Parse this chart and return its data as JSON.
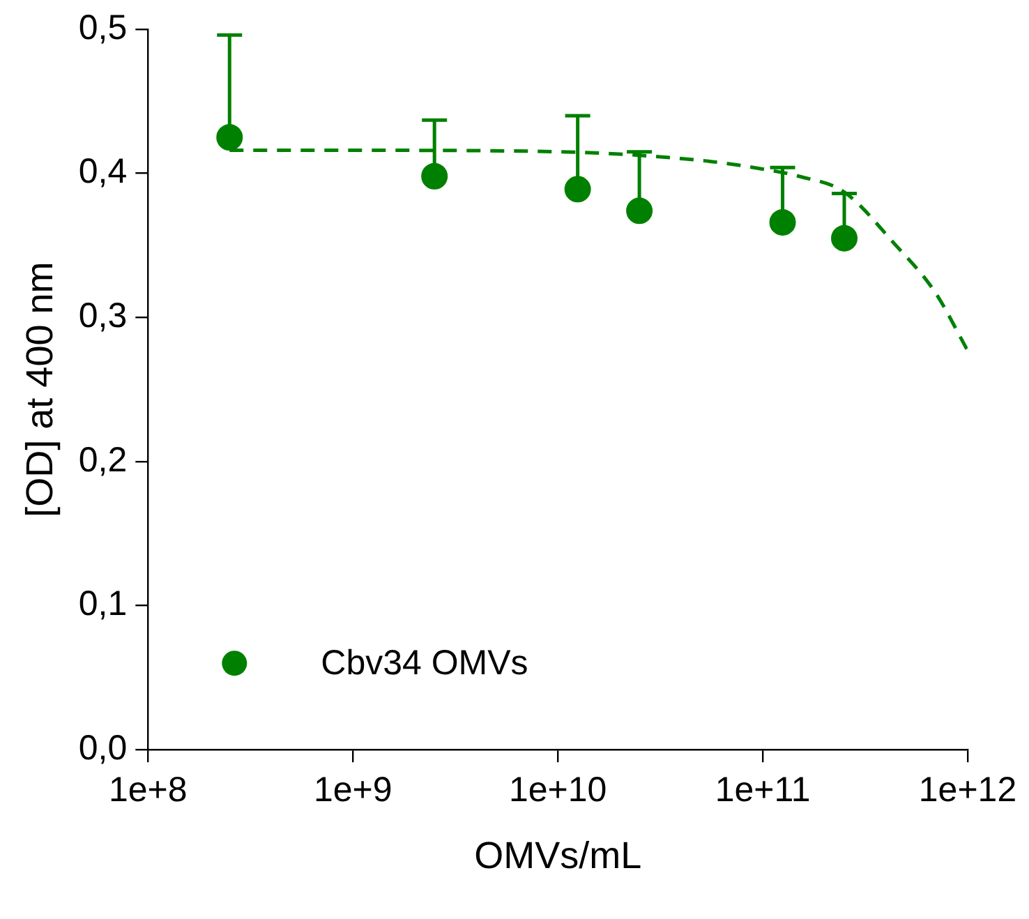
{
  "chart_data": {
    "type": "scatter",
    "xlabel": "OMVs/mL",
    "ylabel": "[OD] at 400 nm",
    "log": "x",
    "grid": false,
    "legend": "bottom left",
    "marker": "circle",
    "xlim": [
      100000000,
      1000000000000
    ],
    "xticks": [
      {
        "value": 100000000,
        "label": "1e+8"
      },
      {
        "value": 1000000000,
        "label": "1e+9"
      },
      {
        "value": 10000000000,
        "label": "1e+10"
      },
      {
        "value": 100000000000,
        "label": "1e+11"
      },
      {
        "value": 1000000000000,
        "label": "1e+12"
      }
    ],
    "ylim": [
      0,
      0.5
    ],
    "yticks": [
      {
        "value": 0,
        "label": "0,0"
      },
      {
        "value": 0.1,
        "label": "0,1"
      },
      {
        "value": 0.2,
        "label": "0,2"
      },
      {
        "value": 0.3,
        "label": "0,3"
      },
      {
        "value": 0.4,
        "label": "0,4"
      },
      {
        "value": 0.5,
        "label": "0,5"
      }
    ],
    "series": [
      {
        "name": "Cbv34 OMVs",
        "color": "#008000",
        "x": [
          250000000,
          2500000000,
          12500000000,
          25000000000,
          125000000000,
          250000000000
        ],
        "values": [
          0.425,
          0.398,
          0.389,
          0.374,
          0.366,
          0.355
        ],
        "errors": [
          [
            0.425,
            0.496
          ],
          [
            0.398,
            0.437
          ],
          [
            0.389,
            0.44
          ],
          [
            0.374,
            0.415
          ],
          [
            0.366,
            0.404
          ],
          [
            0.355,
            0.386
          ]
        ]
      },
      {
        "type": "line",
        "color": "#008000",
        "line_style": "dashed",
        "marker": "none",
        "x": [
          250000000,
          1000000000,
          10000000000,
          50000000000,
          100000000000,
          150000000000,
          250000000000,
          440000000000,
          690000000000,
          1000000000000
        ],
        "values": [
          0.416,
          0.416,
          0.415,
          0.409,
          0.403,
          0.398,
          0.387,
          0.351,
          0.318,
          0.277
        ]
      }
    ]
  }
}
